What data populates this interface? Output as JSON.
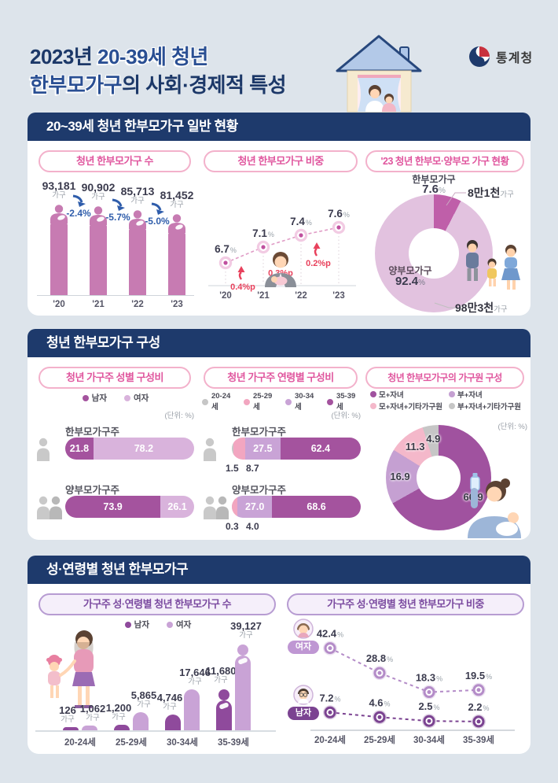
{
  "header": {
    "title1_plain": "2023년",
    "title1_emph": "20-39세 청년",
    "title2_emph": "한부모가구",
    "title2_plain": "의 사회·경제적 특성",
    "logo_text": "통계청"
  },
  "sections": [
    {
      "title": "20~39세 청년 한부모가구 일반 현황"
    },
    {
      "title": "청년 한부모가구 구성"
    },
    {
      "title": "성·연령별 청년 한부모가구"
    }
  ],
  "chart_data": [
    {
      "id": "count",
      "type": "bar",
      "title": "청년 한부모가구 수",
      "categories": [
        "'20",
        "'21",
        "'22",
        "'23"
      ],
      "values": [
        93181,
        90902,
        85713,
        81452
      ],
      "value_labels": [
        "93,181",
        "90,902",
        "85,713",
        "81,452"
      ],
      "unit": "가구",
      "changes": [
        "-2.4%",
        "-5.7%",
        "-5.0%"
      ],
      "bar_color": "#c77bb2",
      "change_color": "#2f5dab"
    },
    {
      "id": "share",
      "type": "line",
      "title": "청년 한부모가구 비중",
      "categories": [
        "'20",
        "'21",
        "'22",
        "'23"
      ],
      "values": [
        6.7,
        7.1,
        7.4,
        7.6
      ],
      "value_labels": [
        "6.7",
        "7.1",
        "7.4",
        "7.6"
      ],
      "unit": "%",
      "ylim": [
        6,
        8
      ],
      "changes": [
        "0.4%p",
        "0.3%p",
        "0.2%p"
      ],
      "line_color": "#e09cc6",
      "marker_color": "#c0509f",
      "change_color": "#e8415c"
    },
    {
      "id": "status",
      "type": "donut",
      "title": "'23 청년 한부모·양부모 가구 현황",
      "slices": [
        {
          "label": "한부모가구",
          "value": 7.6,
          "value_label": "7.6",
          "count": "8만1천",
          "count_unit": "가구",
          "color": "#bf5fa9"
        },
        {
          "label": "양부모가구",
          "value": 92.4,
          "value_label": "92.4",
          "count": "98만3천",
          "count_unit": "가구",
          "color": "#e2c2df"
        }
      ]
    },
    {
      "id": "gender",
      "type": "stacked-bar",
      "title": "청년 가구주 성별 구성비",
      "unit_label": "(단위: %)",
      "legend": [
        "남자",
        "여자"
      ],
      "colors": [
        "#a4539e",
        "#d9b3dc"
      ],
      "rows": [
        {
          "label": "한부모가구주",
          "values": [
            21.8,
            78.2
          ],
          "value_labels": [
            "21.8",
            "78.2"
          ]
        },
        {
          "label": "양부모가구주",
          "values": [
            73.9,
            26.1
          ],
          "value_labels": [
            "73.9",
            "26.1"
          ]
        }
      ]
    },
    {
      "id": "age",
      "type": "stacked-bar",
      "title": "청년 가구주 연령별 구성비",
      "unit_label": "(단위: %)",
      "legend": [
        "20-24세",
        "25-29세",
        "30-34세",
        "35-39세"
      ],
      "colors": [
        "#c6c6c6",
        "#f2a6c0",
        "#c9a3d6",
        "#a4539e"
      ],
      "rows": [
        {
          "label": "한부모가구주",
          "values": [
            1.5,
            8.7,
            27.5,
            62.4
          ],
          "value_labels": [
            "1.5",
            "8.7",
            "27.5",
            "62.4"
          ]
        },
        {
          "label": "양부모가구주",
          "values": [
            0.3,
            4.0,
            27.0,
            68.6
          ],
          "value_labels": [
            "0.3",
            "4.0",
            "27.0",
            "68.6"
          ]
        }
      ]
    },
    {
      "id": "member",
      "type": "donut",
      "title": "청년 한부모가구의 가구원 구성",
      "unit_label": "(단위: %)",
      "slices": [
        {
          "label": "모+자녀",
          "value": 66.9,
          "value_label": "66.9",
          "color": "#a0529f"
        },
        {
          "label": "부+자녀",
          "value": 16.9,
          "value_label": "16.9",
          "color": "#c5a0d2"
        },
        {
          "label": "모+자녀+기타가구원",
          "value": 11.3,
          "value_label": "11.3",
          "color": "#f4b8ca"
        },
        {
          "label": "부+자녀+기타가구원",
          "value": 4.9,
          "value_label": "4.9",
          "color": "#c6c6c6"
        }
      ]
    },
    {
      "id": "countByAge",
      "type": "grouped-bar",
      "title": "가구주 성·연령별 청년 한부모가구 수",
      "categories": [
        "20-24세",
        "25-29세",
        "30-34세",
        "35-39세"
      ],
      "unit": "가구",
      "series": [
        {
          "name": "남자",
          "color": "#8f4a9c",
          "values": [
            126,
            1200,
            4746,
            11680
          ],
          "value_labels": [
            "126",
            "1,200",
            "4,746",
            "11,680"
          ]
        },
        {
          "name": "여자",
          "color": "#c9a3d6",
          "values": [
            1062,
            5865,
            17646,
            39127
          ],
          "value_labels": [
            "1,062",
            "5,865",
            "17,646",
            "39,127"
          ]
        }
      ]
    },
    {
      "id": "shareByAge",
      "type": "multi-line",
      "title": "가구주 성·연령별 청년 한부모가구 비중",
      "categories": [
        "20-24세",
        "25-29세",
        "30-34세",
        "35-39세"
      ],
      "unit": "%",
      "series": [
        {
          "name": "여자",
          "color": "#b48cc8",
          "badge_color": "#bf97d3",
          "values": [
            42.4,
            28.8,
            18.3,
            19.5
          ],
          "value_labels": [
            "42.4",
            "28.8",
            "18.3",
            "19.5"
          ]
        },
        {
          "name": "남자",
          "color": "#7b4391",
          "badge_color": "#7b4391",
          "values": [
            7.2,
            4.6,
            2.5,
            2.2
          ],
          "value_labels": [
            "7.2",
            "4.6",
            "2.5",
            "2.2"
          ]
        }
      ]
    }
  ]
}
